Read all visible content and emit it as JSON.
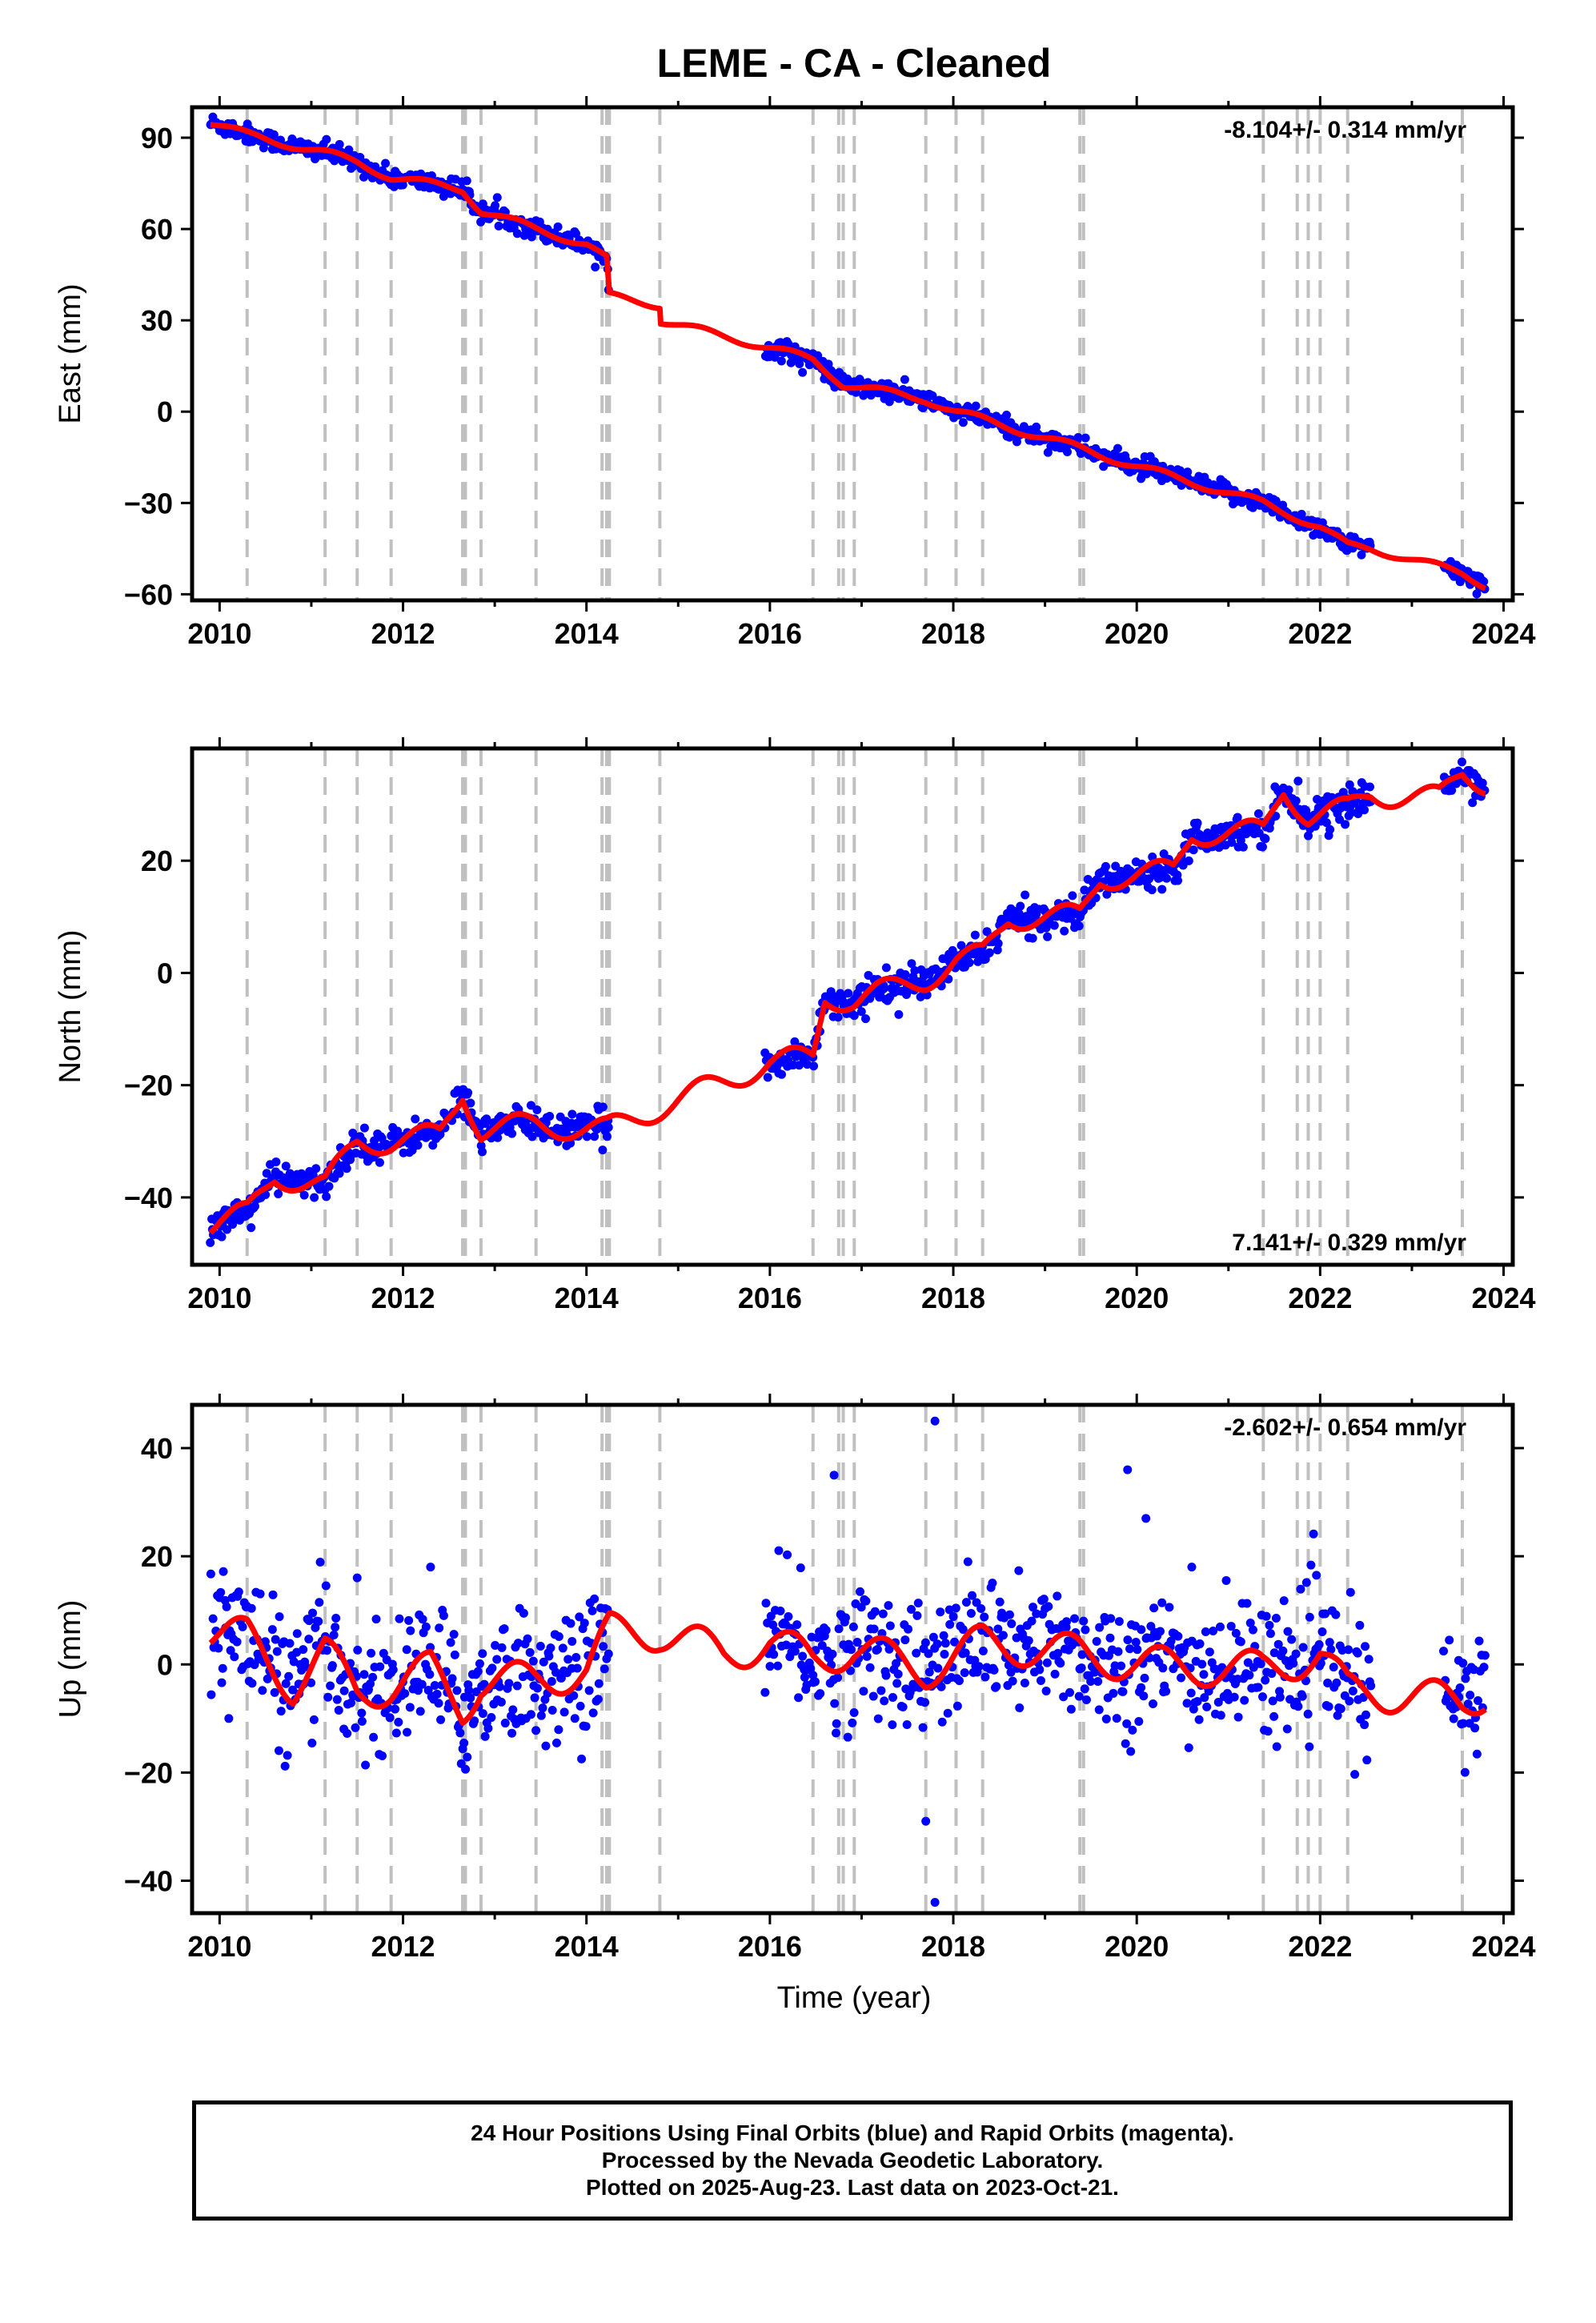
{
  "title": "LEME  - CA - Cleaned",
  "xlabel": "Time (year)",
  "footer": {
    "line1": "24 Hour Positions Using Final Orbits (blue) and Rapid Orbits (magenta).",
    "line2": "Processed by the Nevada Geodetic Laboratory.",
    "line3": "Plotted on 2025-Aug-23. Last data on 2023-Oct-21."
  },
  "colors": {
    "observations": "#0000ff",
    "model": "#ff0000",
    "steps": "#c0c0c0",
    "frame": "#000000"
  },
  "chart_data": [
    {
      "type": "scatter",
      "ylabel": "East (mm)",
      "rate_label": "-8.104+/- 0.314 mm/yr",
      "rate_position": "top-right",
      "xlim": [
        2009.7,
        2024.1
      ],
      "ylim": [
        -62,
        100
      ],
      "xticks": [
        2010,
        2012,
        2014,
        2016,
        2018,
        2020,
        2022,
        2024
      ],
      "yticks": [
        -60,
        -30,
        0,
        30,
        60,
        90
      ],
      "step_epochs": [
        2010.3,
        2011.15,
        2011.5,
        2011.87,
        2012.65,
        2012.68,
        2012.85,
        2013.45,
        2014.17,
        2014.22,
        2014.25,
        2014.8,
        2016.47,
        2016.75,
        2016.8,
        2016.92,
        2017.7,
        2018.03,
        2018.32,
        2019.38,
        2019.42,
        2021.38,
        2021.75,
        2021.87,
        2022.0,
        2022.3,
        2023.55
      ],
      "data_segments": [
        [
          2009.9,
          2014.25
        ],
        [
          2015.95,
          2022.55
        ],
        [
          2023.35,
          2023.8
        ]
      ],
      "model_keypoints": [
        [
          2009.9,
          95
        ],
        [
          2010.3,
          91
        ],
        [
          2011.15,
          85
        ],
        [
          2011.5,
          82
        ],
        [
          2011.87,
          77
        ],
        [
          2012.65,
          73
        ],
        [
          2012.85,
          66
        ],
        [
          2013.45,
          60
        ],
        [
          2014.0,
          55
        ],
        [
          2014.22,
          50
        ],
        [
          2014.25,
          38
        ],
        [
          2014.8,
          35
        ],
        [
          2014.8,
          30
        ],
        [
          2016.0,
          21
        ],
        [
          2016.47,
          17
        ],
        [
          2016.8,
          9
        ],
        [
          2017.7,
          4
        ],
        [
          2018.03,
          0
        ],
        [
          2019.38,
          -12
        ],
        [
          2020.0,
          -18
        ],
        [
          2021.38,
          -30
        ],
        [
          2022.0,
          -38
        ],
        [
          2022.3,
          -44
        ],
        [
          2022.55,
          -45
        ],
        [
          2023.55,
          -53
        ],
        [
          2023.8,
          -57
        ]
      ],
      "seasonal_amplitude": 1.2,
      "noise": 1.6
    },
    {
      "type": "scatter",
      "ylabel": "North (mm)",
      "rate_label": "7.141+/- 0.329 mm/yr",
      "rate_position": "bottom-right",
      "xlim": [
        2009.7,
        2024.1
      ],
      "ylim": [
        -52,
        40
      ],
      "xticks": [
        2010,
        2012,
        2014,
        2016,
        2018,
        2020,
        2022,
        2024
      ],
      "yticks": [
        -40,
        -20,
        0,
        20
      ],
      "step_epochs": [
        2010.3,
        2011.15,
        2011.5,
        2011.87,
        2012.65,
        2012.68,
        2012.85,
        2013.45,
        2014.17,
        2014.22,
        2014.25,
        2014.8,
        2016.47,
        2016.75,
        2016.8,
        2016.92,
        2017.7,
        2018.03,
        2018.32,
        2019.38,
        2019.42,
        2021.38,
        2021.75,
        2021.87,
        2022.0,
        2022.3,
        2023.55
      ],
      "data_segments": [
        [
          2009.9,
          2014.25
        ],
        [
          2015.95,
          2022.55
        ],
        [
          2023.35,
          2023.8
        ]
      ],
      "model_keypoints": [
        [
          2009.9,
          -45
        ],
        [
          2010.3,
          -43
        ],
        [
          2010.6,
          -36
        ],
        [
          2011.15,
          -38
        ],
        [
          2011.5,
          -30
        ],
        [
          2011.87,
          -30
        ],
        [
          2012.4,
          -29
        ],
        [
          2012.65,
          -21
        ],
        [
          2012.85,
          -28
        ],
        [
          2013.45,
          -27
        ],
        [
          2014.22,
          -28
        ],
        [
          2014.8,
          -24
        ],
        [
          2016.0,
          -16
        ],
        [
          2016.47,
          -15
        ],
        [
          2016.6,
          -4
        ],
        [
          2016.92,
          -5
        ],
        [
          2017.7,
          -1
        ],
        [
          2018.03,
          2
        ],
        [
          2018.32,
          3
        ],
        [
          2018.6,
          10
        ],
        [
          2019.38,
          10
        ],
        [
          2019.6,
          17
        ],
        [
          2020.4,
          18
        ],
        [
          2020.6,
          25
        ],
        [
          2021.38,
          25
        ],
        [
          2021.6,
          33
        ],
        [
          2021.87,
          28
        ],
        [
          2022.3,
          29
        ],
        [
          2022.55,
          32
        ],
        [
          2023.3,
          31
        ],
        [
          2023.55,
          36
        ],
        [
          2023.8,
          34
        ]
      ],
      "seasonal_amplitude": 2.2,
      "noise": 1.4
    },
    {
      "type": "scatter",
      "ylabel": "Up (mm)",
      "rate_label": "-2.602+/- 0.654 mm/yr",
      "rate_position": "top-right",
      "xlim": [
        2009.7,
        2024.1
      ],
      "ylim": [
        -46,
        48
      ],
      "xticks": [
        2010,
        2012,
        2014,
        2016,
        2018,
        2020,
        2022,
        2024
      ],
      "yticks": [
        -40,
        -20,
        0,
        20,
        40
      ],
      "step_epochs": [
        2010.3,
        2011.15,
        2011.5,
        2011.87,
        2012.65,
        2012.68,
        2012.85,
        2013.45,
        2014.17,
        2014.22,
        2014.25,
        2014.8,
        2016.47,
        2016.75,
        2016.8,
        2016.92,
        2017.7,
        2018.03,
        2018.32,
        2019.38,
        2019.42,
        2021.38,
        2021.75,
        2021.87,
        2022.0,
        2022.3,
        2023.55
      ],
      "data_segments": [
        [
          2009.9,
          2014.25
        ],
        [
          2015.95,
          2022.55
        ],
        [
          2023.35,
          2023.8
        ]
      ],
      "model_keypoints": [
        [
          2009.9,
          6
        ],
        [
          2010.3,
          5
        ],
        [
          2010.8,
          -4
        ],
        [
          2011.15,
          2
        ],
        [
          2011.5,
          -5
        ],
        [
          2011.87,
          -4
        ],
        [
          2012.3,
          -1
        ],
        [
          2012.65,
          -8
        ],
        [
          2012.85,
          -3
        ],
        [
          2013.45,
          -3
        ],
        [
          2014.0,
          -1
        ],
        [
          2014.25,
          6
        ],
        [
          2014.8,
          6
        ],
        [
          2015.5,
          2
        ],
        [
          2016.0,
          4
        ],
        [
          2016.47,
          1
        ],
        [
          2016.92,
          3
        ],
        [
          2017.7,
          -1
        ],
        [
          2018.32,
          4
        ],
        [
          2019.38,
          2
        ],
        [
          2020.0,
          0
        ],
        [
          2021.38,
          -1
        ],
        [
          2022.0,
          2
        ],
        [
          2022.3,
          -5
        ],
        [
          2022.55,
          -5
        ],
        [
          2023.55,
          -7
        ],
        [
          2023.8,
          -5
        ]
      ],
      "seasonal_amplitude": 3.5,
      "noise": 6.0,
      "outliers": [
        [
          2016.7,
          35
        ],
        [
          2017.8,
          45
        ],
        [
          2017.8,
          -44
        ],
        [
          2017.7,
          -29
        ],
        [
          2019.9,
          36
        ],
        [
          2020.1,
          27
        ],
        [
          2010.1,
          -10
        ],
        [
          2011.5,
          16
        ],
        [
          2012.3,
          18
        ],
        [
          2020.6,
          18
        ]
      ]
    }
  ]
}
